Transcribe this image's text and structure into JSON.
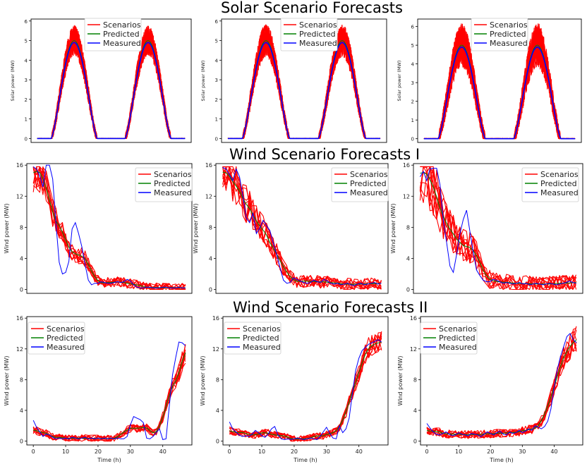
{
  "titles": {
    "solar": "Solar Scenario Forecasts",
    "wind1": "Wind Scenario Forecasts I",
    "wind2": "Wind Scenario Forecasts II"
  },
  "colors": {
    "scenarios": "#ff0000",
    "predicted": "#008000",
    "measured": "#0000ff"
  },
  "legend": [
    "Scenarios",
    "Predicted",
    "Measured"
  ],
  "chart_data": [
    {
      "id": "solar-1",
      "type": "line",
      "row": "solar",
      "ylabel": "Solar power (MW)",
      "xlabel": "",
      "xlim": [
        -2,
        50
      ],
      "ylim": [
        -0.2,
        6.1
      ],
      "yticks": [
        0,
        1,
        2,
        3,
        4,
        5,
        6
      ],
      "xticks": [],
      "x_range": [
        0,
        48
      ],
      "n": 300,
      "profile": "solar",
      "noise": 0.55,
      "scenario_count": 10,
      "seed": 11,
      "measured_peak": 4.9,
      "predicted_peak": 5.0
    },
    {
      "id": "solar-2",
      "type": "line",
      "row": "solar",
      "ylabel": "Solar power (MW)",
      "xlabel": "",
      "xlim": [
        -2,
        50
      ],
      "ylim": [
        -0.2,
        6.1
      ],
      "yticks": [
        0,
        1,
        2,
        3,
        4,
        5,
        6
      ],
      "xticks": [],
      "x_range": [
        0,
        48
      ],
      "n": 300,
      "profile": "solar",
      "noise": 0.6,
      "scenario_count": 10,
      "seed": 23,
      "measured_peak": 4.9,
      "predicted_peak": 5.0
    },
    {
      "id": "solar-3",
      "type": "line",
      "row": "solar",
      "ylabel": "Solar power (MW)",
      "xlabel": "",
      "xlim": [
        -2,
        50
      ],
      "ylim": [
        -0.2,
        6.4
      ],
      "yticks": [
        0,
        1,
        2,
        3,
        4,
        5,
        6
      ],
      "xticks": [],
      "x_range": [
        0,
        48
      ],
      "n": 300,
      "profile": "solar",
      "noise": 0.85,
      "scenario_count": 10,
      "seed": 37,
      "measured_peak": 4.9,
      "predicted_peak": 5.0
    },
    {
      "id": "wind1-1",
      "type": "line",
      "row": "wind1",
      "ylabel": "Wind power (MW)",
      "xlabel": "",
      "xlim": [
        -2,
        49
      ],
      "ylim": [
        -0.5,
        16.2
      ],
      "yticks": [
        0,
        4,
        8,
        12,
        16
      ],
      "xticks": [],
      "x_range": [
        0,
        47
      ],
      "n": 48,
      "profile": "wind_decay",
      "noise": 1.1,
      "scenario_count": 10,
      "seed": 5,
      "measured": [
        15.8,
        15.5,
        14.6,
        13.2,
        16.0,
        16.0,
        14.2,
        8.5,
        3.5,
        2.0,
        2.2,
        3.6,
        7.8,
        8.6,
        7.2,
        5.5,
        3.2,
        1.2,
        0.6,
        0.8,
        0.8,
        1.0,
        0.9,
        0.8,
        0.8,
        0.9,
        1.0,
        0.9,
        1.0,
        1.3,
        1.1,
        0.6,
        0.3,
        0.2,
        0.2,
        0.3,
        0.3,
        0.2,
        0.2,
        0.2,
        0.3,
        0.3,
        0.2,
        0.2,
        0.2,
        0.3,
        0.2,
        0.2
      ]
    },
    {
      "id": "wind1-2",
      "type": "line",
      "row": "wind1",
      "ylabel": "Wind power (MW)",
      "xlabel": "",
      "xlim": [
        -2,
        49
      ],
      "ylim": [
        -0.5,
        16.2
      ],
      "yticks": [
        0,
        4,
        8,
        12,
        16
      ],
      "xticks": [],
      "x_range": [
        0,
        47
      ],
      "n": 48,
      "profile": "wind_decay",
      "noise": 1.3,
      "scenario_count": 10,
      "seed": 17,
      "measured": [
        15.7,
        15.5,
        14.8,
        14.0,
        15.5,
        14.5,
        12.0,
        9.2,
        8.6,
        9.8,
        7.2,
        7.9,
        8.9,
        8.2,
        7.6,
        6.0,
        4.5,
        2.8,
        1.2,
        0.8,
        0.9,
        1.5,
        1.3,
        1.1,
        0.9,
        0.8,
        0.9,
        1.2,
        1.0,
        0.9,
        1.3,
        1.1,
        0.8,
        0.7,
        0.8,
        0.6,
        0.7,
        0.8,
        0.6,
        0.5,
        0.7,
        0.8,
        0.6,
        0.7,
        0.8,
        0.9,
        0.7,
        0.8
      ]
    },
    {
      "id": "wind1-3",
      "type": "line",
      "row": "wind1",
      "ylabel": "Wind power (MW)",
      "xlabel": "",
      "xlim": [
        -2,
        49
      ],
      "ylim": [
        -0.5,
        16.2
      ],
      "yticks": [
        0,
        4,
        8,
        12,
        16
      ],
      "xticks": [],
      "x_range": [
        0,
        47
      ],
      "n": 48,
      "profile": "wind_decay",
      "noise": 1.8,
      "scenario_count": 10,
      "seed": 29,
      "measured": [
        14.5,
        15.2,
        14.0,
        15.5,
        15.6,
        15.6,
        13.5,
        8.8,
        6.0,
        3.0,
        2.2,
        4.5,
        7.2,
        9.0,
        10.2,
        7.5,
        4.8,
        2.5,
        1.8,
        1.2,
        1.0,
        1.0,
        1.3,
        1.2,
        1.0,
        0.8,
        0.9,
        0.8,
        0.7,
        0.8,
        0.9,
        0.7,
        0.8,
        0.6,
        0.7,
        0.8,
        0.7,
        0.6,
        0.7,
        0.8,
        0.7,
        0.6,
        0.7,
        0.8,
        0.9,
        1.1,
        0.9,
        0.8
      ]
    },
    {
      "id": "wind2-1",
      "type": "line",
      "row": "wind2",
      "ylabel": "Wind power (MW)",
      "xlabel": "Time (h)",
      "xlim": [
        -2,
        49
      ],
      "ylim": [
        -0.5,
        16.2
      ],
      "yticks": [
        0,
        4,
        8,
        12,
        16
      ],
      "xticks": [
        0,
        10,
        20,
        30,
        40
      ],
      "x_range": [
        0,
        47
      ],
      "n": 48,
      "profile": "wind_rise",
      "noise": 0.9,
      "scenario_count": 10,
      "seed": 41,
      "measured": [
        2.7,
        1.8,
        1.2,
        0.6,
        0.9,
        0.8,
        0.5,
        0.3,
        0.4,
        0.3,
        0.4,
        0.3,
        0.5,
        0.4,
        0.3,
        0.4,
        0.5,
        0.3,
        0.4,
        0.3,
        0.4,
        0.3,
        0.4,
        0.3,
        0.4,
        0.3,
        0.4,
        0.3,
        0.3,
        0.6,
        2.1,
        3.2,
        3.0,
        2.8,
        2.4,
        0.4,
        0.3,
        0.6,
        1.1,
        1.6,
        0.2,
        0.3,
        4.5,
        8.6,
        10.9,
        12.9,
        12.8,
        12.4
      ]
    },
    {
      "id": "wind2-2",
      "type": "line",
      "row": "wind2",
      "ylabel": "Wind power (MW)",
      "xlabel": "Time (h)",
      "xlim": [
        -2,
        49
      ],
      "ylim": [
        -0.5,
        16.2
      ],
      "yticks": [
        0,
        4,
        8,
        12,
        16
      ],
      "xticks": [
        0,
        10,
        20,
        30,
        40
      ],
      "x_range": [
        0,
        47
      ],
      "n": 48,
      "profile": "wind_rise",
      "noise": 0.9,
      "scenario_count": 10,
      "seed": 53,
      "measured": [
        2.5,
        1.6,
        1.2,
        0.8,
        0.6,
        0.7,
        0.6,
        0.9,
        1.4,
        1.1,
        0.7,
        0.5,
        0.9,
        1.6,
        1.9,
        0.8,
        0.3,
        0.2,
        0.3,
        0.2,
        0.3,
        0.4,
        0.3,
        0.2,
        0.3,
        0.4,
        0.3,
        0.2,
        0.6,
        1.2,
        1.8,
        1.0,
        0.4,
        0.3,
        2.0,
        1.1,
        1.6,
        3.0,
        6.2,
        9.2,
        10.8,
        11.8,
        12.2,
        12.6,
        12.8,
        13.0,
        13.2,
        12.9
      ]
    },
    {
      "id": "wind2-3",
      "type": "line",
      "row": "wind2",
      "ylabel": "Wind power (MW)",
      "xlabel": "Time (h)",
      "xlim": [
        -2,
        49
      ],
      "ylim": [
        -0.5,
        16.2
      ],
      "yticks": [
        0,
        4,
        8,
        12,
        16
      ],
      "xticks": [
        0,
        10,
        20,
        30,
        40
      ],
      "x_range": [
        0,
        47
      ],
      "n": 48,
      "profile": "wind_rise",
      "noise": 1.0,
      "scenario_count": 10,
      "seed": 67,
      "measured": [
        2.3,
        1.7,
        1.2,
        0.9,
        0.8,
        1.0,
        1.2,
        0.9,
        0.7,
        0.8,
        1.1,
        0.9,
        0.8,
        0.7,
        1.0,
        0.9,
        0.8,
        0.6,
        0.9,
        1.2,
        1.0,
        0.8,
        1.1,
        1.3,
        0.9,
        0.8,
        1.2,
        1.0,
        1.1,
        1.4,
        1.1,
        1.3,
        1.6,
        1.4,
        2.0,
        1.8,
        1.6,
        1.9,
        2.6,
        4.2,
        7.0,
        9.3,
        11.0,
        12.3,
        13.6,
        14.0,
        13.2,
        12.8
      ]
    }
  ]
}
